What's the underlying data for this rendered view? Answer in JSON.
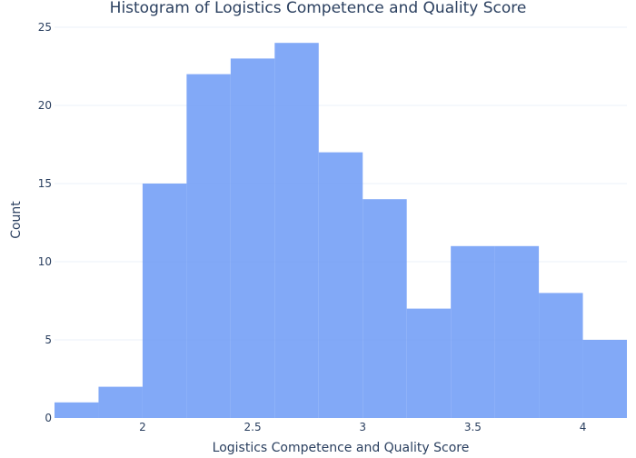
{
  "chart_data": {
    "type": "bar",
    "title": "Histogram of Logistics Competence and Quality Score",
    "xlabel": "Logistics Competence and Quality Score",
    "ylabel": "Count",
    "bin_edges": [
      1.6,
      1.8,
      2.0,
      2.2,
      2.4,
      2.6,
      2.8,
      3.0,
      3.2,
      3.4,
      3.6,
      3.8,
      4.0,
      4.2
    ],
    "values": [
      1,
      2,
      15,
      22,
      23,
      24,
      17,
      14,
      7,
      11,
      11,
      8,
      5
    ],
    "xlim": [
      1.6,
      4.2
    ],
    "ylim": [
      0,
      25
    ],
    "x_ticks": [
      2,
      2.5,
      3,
      3.5,
      4
    ],
    "x_tick_labels": [
      "2",
      "2.5",
      "3",
      "3.5",
      "4"
    ],
    "y_ticks": [
      0,
      5,
      10,
      15,
      20,
      25
    ],
    "y_tick_labels": [
      "0",
      "5",
      "10",
      "15",
      "20",
      "25"
    ],
    "bar_color": "#6f9cf6",
    "bar_opacity": 0.87,
    "grid": true,
    "grid_color": "#ebf0f8",
    "text_color": "#2a3f5f"
  }
}
